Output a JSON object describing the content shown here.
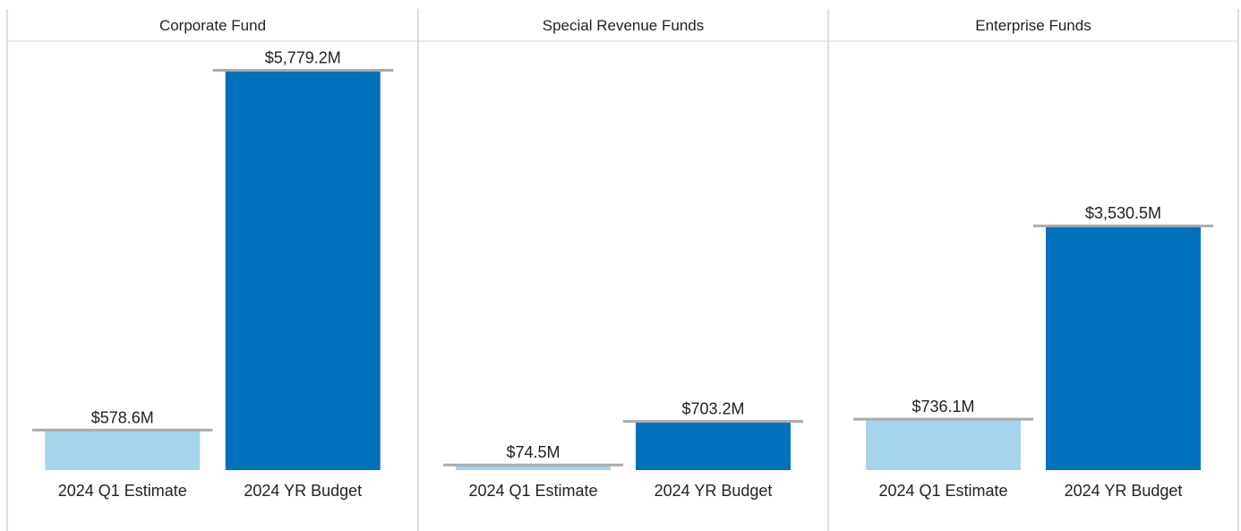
{
  "colors": {
    "estimate": "#A6D4EC",
    "budget": "#0072BC",
    "reference_line": "#AAAAAA",
    "divider": "#D4D4D4"
  },
  "chart_data": {
    "type": "bar",
    "ylim": [
      0,
      6200
    ],
    "unit": "$M",
    "panels": [
      {
        "title": "Corporate Fund",
        "categories": [
          "2024 Q1 Estimate",
          "2024 YR Budget"
        ],
        "values": [
          578.6,
          5779.2
        ],
        "labels": [
          "$578.6M",
          "$5,779.2M"
        ]
      },
      {
        "title": "Special Revenue Funds",
        "categories": [
          "2024 Q1 Estimate",
          "2024 YR Budget"
        ],
        "values": [
          74.5,
          703.2
        ],
        "labels": [
          "$74.5M",
          "$703.2M"
        ]
      },
      {
        "title": "Enterprise Funds",
        "categories": [
          "2024 Q1 Estimate",
          "2024 YR Budget"
        ],
        "values": [
          736.1,
          3530.5
        ],
        "labels": [
          "$736.1M",
          "$3,530.5M"
        ]
      }
    ]
  }
}
